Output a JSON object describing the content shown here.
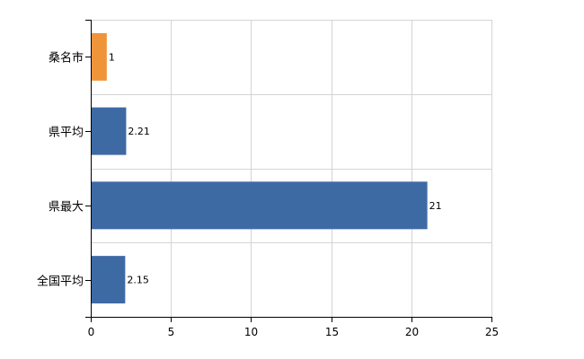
{
  "chart_data": {
    "type": "bar",
    "orientation": "horizontal",
    "categories": [
      "桑名市",
      "県平均",
      "県最大",
      "全国平均"
    ],
    "values": [
      1,
      2.21,
      21,
      2.15
    ],
    "value_labels": [
      "1",
      "2.21",
      "21",
      "2.15"
    ],
    "bar_colors": [
      "#f0943a",
      "#3e6aa4",
      "#3e6aa4",
      "#3e6aa4"
    ],
    "xlim": [
      0,
      25
    ],
    "xticks": [
      0,
      5,
      10,
      15,
      20,
      25
    ],
    "grid": true,
    "legend": "none"
  }
}
